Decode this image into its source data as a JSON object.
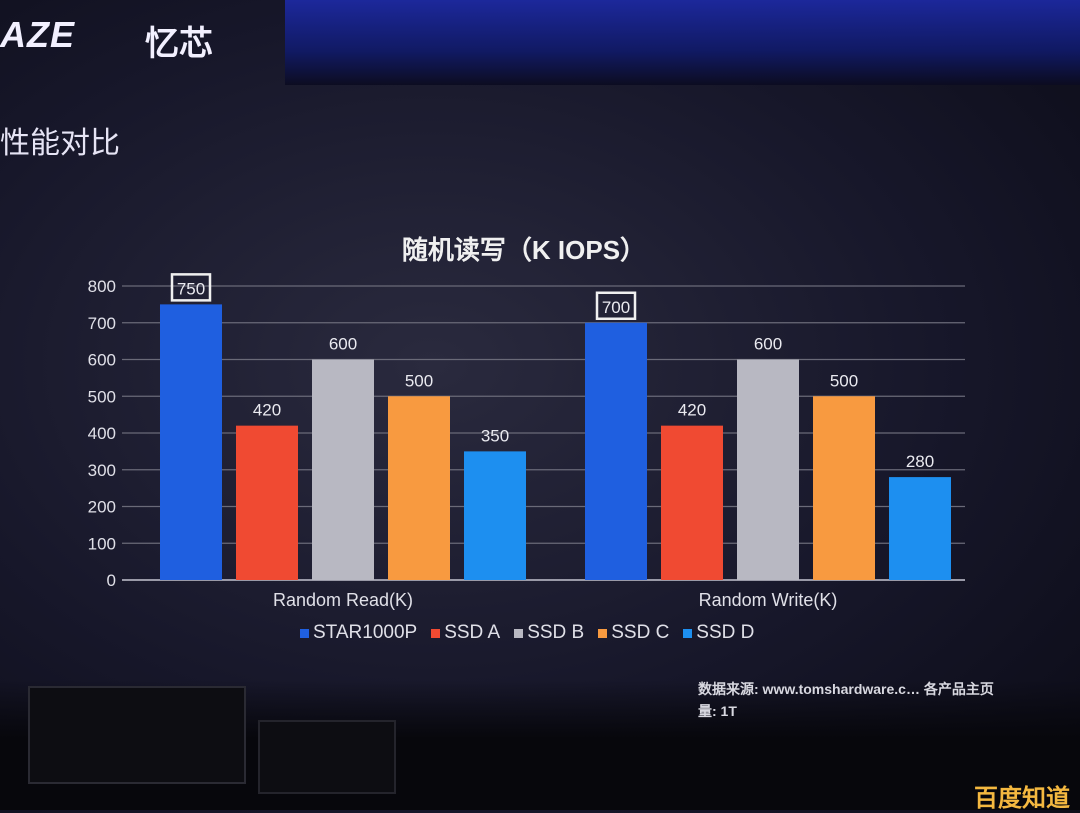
{
  "header": {
    "logo": "AZE",
    "logo_cn": "忆芯",
    "section_title": "性能对比"
  },
  "chart_data": {
    "type": "bar",
    "title": "随机读写（K IOPS）",
    "categories": [
      "Random Read(K)",
      "Random Write(K)"
    ],
    "series": [
      {
        "name": "STAR1000P",
        "color": "#1f5fe0",
        "values": [
          750,
          700
        ],
        "highlight": true
      },
      {
        "name": "SSD A",
        "color": "#f04a32",
        "values": [
          420,
          420
        ]
      },
      {
        "name": "SSD B",
        "color": "#b8b8c2",
        "values": [
          600,
          600
        ]
      },
      {
        "name": "SSD C",
        "color": "#f89a40",
        "values": [
          500,
          500
        ]
      },
      {
        "name": "SSD D",
        "color": "#1d8ff0",
        "values": [
          350,
          280
        ]
      }
    ],
    "yticks": [
      0,
      100,
      200,
      300,
      400,
      500,
      600,
      700,
      800
    ],
    "ylim": [
      0,
      800
    ],
    "grid": true,
    "legend": "bottom"
  },
  "footer": {
    "source_line": "数据来源: www.tomshardware.c… 各产品主页",
    "capacity_line": "量:   1T",
    "watermark": "百度知道"
  }
}
